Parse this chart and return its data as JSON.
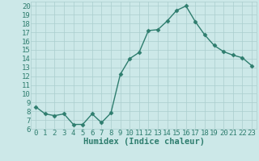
{
  "x": [
    0,
    1,
    2,
    3,
    4,
    5,
    6,
    7,
    8,
    9,
    10,
    11,
    12,
    13,
    14,
    15,
    16,
    17,
    18,
    19,
    20,
    21,
    22,
    23
  ],
  "y": [
    8.5,
    7.7,
    7.5,
    7.7,
    6.5,
    6.5,
    7.7,
    6.7,
    7.8,
    12.2,
    14.0,
    14.7,
    17.2,
    17.3,
    18.3,
    19.5,
    20.0,
    18.2,
    16.7,
    15.5,
    14.8,
    14.4,
    14.1,
    13.2
  ],
  "line_color": "#2e7d6e",
  "marker": "D",
  "markersize": 2.5,
  "linewidth": 1.0,
  "bg_color": "#cce8e8",
  "grid_color": "#aacece",
  "xlabel": "Humidex (Indice chaleur)",
  "xlim": [
    -0.5,
    23.5
  ],
  "ylim": [
    6,
    20.5
  ],
  "yticks": [
    6,
    7,
    8,
    9,
    10,
    11,
    12,
    13,
    14,
    15,
    16,
    17,
    18,
    19,
    20
  ],
  "xticks": [
    0,
    1,
    2,
    3,
    4,
    5,
    6,
    7,
    8,
    9,
    10,
    11,
    12,
    13,
    14,
    15,
    16,
    17,
    18,
    19,
    20,
    21,
    22,
    23
  ],
  "tick_color": "#2e7d6e",
  "label_color": "#2e7d6e",
  "xlabel_fontsize": 7.5,
  "tick_fontsize": 6.5
}
